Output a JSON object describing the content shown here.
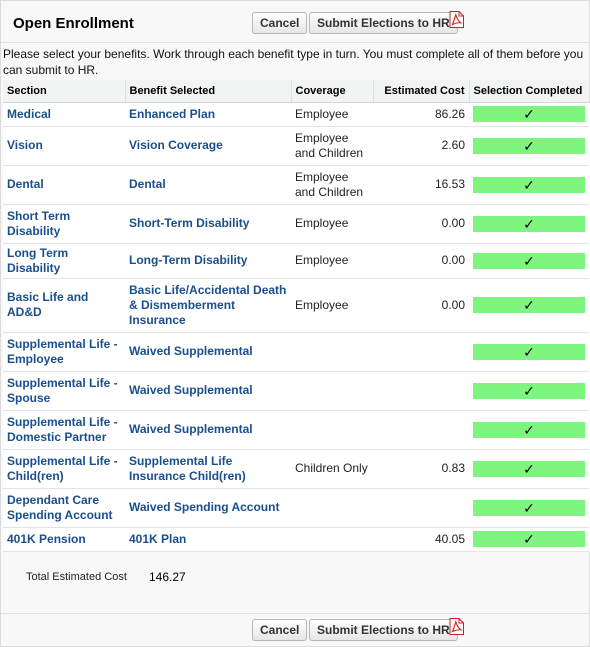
{
  "header": {
    "title": "Open Enrollment",
    "cancel_label": "Cancel",
    "submit_label": "Submit Elections to HR"
  },
  "intro_text": "Please select your benefits.  Work through each benefit type in turn.  You must complete all of them before you can submit to HR.",
  "table": {
    "columns": [
      "Section",
      "Benefit Selected",
      "Coverage",
      "Estimated Cost",
      "Selection Completed"
    ],
    "check_mark": "✓",
    "rows": [
      {
        "section": "Medical",
        "benefit": "Enhanced Plan",
        "coverage": "Employee",
        "cost": "86.26",
        "completed": true
      },
      {
        "section": "Vision",
        "benefit": "Vision Coverage",
        "coverage": "Employee and Children",
        "cost": "2.60",
        "completed": true
      },
      {
        "section": "Dental",
        "benefit": "Dental",
        "coverage": "Employee and Children",
        "cost": "16.53",
        "completed": true
      },
      {
        "section": "Short Term Disability",
        "benefit": "Short-Term Disability",
        "coverage": "Employee",
        "cost": "0.00",
        "completed": true
      },
      {
        "section": "Long Term Disability",
        "benefit": "Long-Term Disability",
        "coverage": "Employee",
        "cost": "0.00",
        "completed": true
      },
      {
        "section": "Basic Life and AD&D",
        "benefit": "Basic Life/Accidental Death & Dismemberment Insurance",
        "coverage": "Employee",
        "cost": "0.00",
        "completed": true
      },
      {
        "section": "Supplemental Life - Employee",
        "benefit": "Waived Supplemental",
        "coverage": "",
        "cost": "",
        "completed": true
      },
      {
        "section": "Supplemental Life - Spouse",
        "benefit": "Waived Supplemental",
        "coverage": "",
        "cost": "",
        "completed": true
      },
      {
        "section": "Supplemental Life - Domestic Partner",
        "benefit": "Waived Supplemental",
        "coverage": "",
        "cost": "",
        "completed": true
      },
      {
        "section": "Supplemental Life - Child(ren)",
        "benefit": "Supplemental Life Insurance Child(ren)",
        "coverage": "Children Only",
        "cost": "0.83",
        "completed": true
      },
      {
        "section": "Dependant Care Spending Account",
        "benefit": "Waived Spending Account",
        "coverage": "",
        "cost": "",
        "completed": true
      },
      {
        "section": "401K Pension",
        "benefit": "401K Plan",
        "coverage": "",
        "cost": "40.05",
        "completed": true
      }
    ]
  },
  "totals": {
    "label": "Total Estimated Cost",
    "value": "146.27"
  },
  "footer": {
    "cancel_label": "Cancel",
    "submit_label": "Submit Elections to HR"
  },
  "icons": {
    "pdf": "pdf-icon"
  },
  "colors": {
    "link": "#1a4f8d",
    "completed_bar": "#7ef57e"
  }
}
